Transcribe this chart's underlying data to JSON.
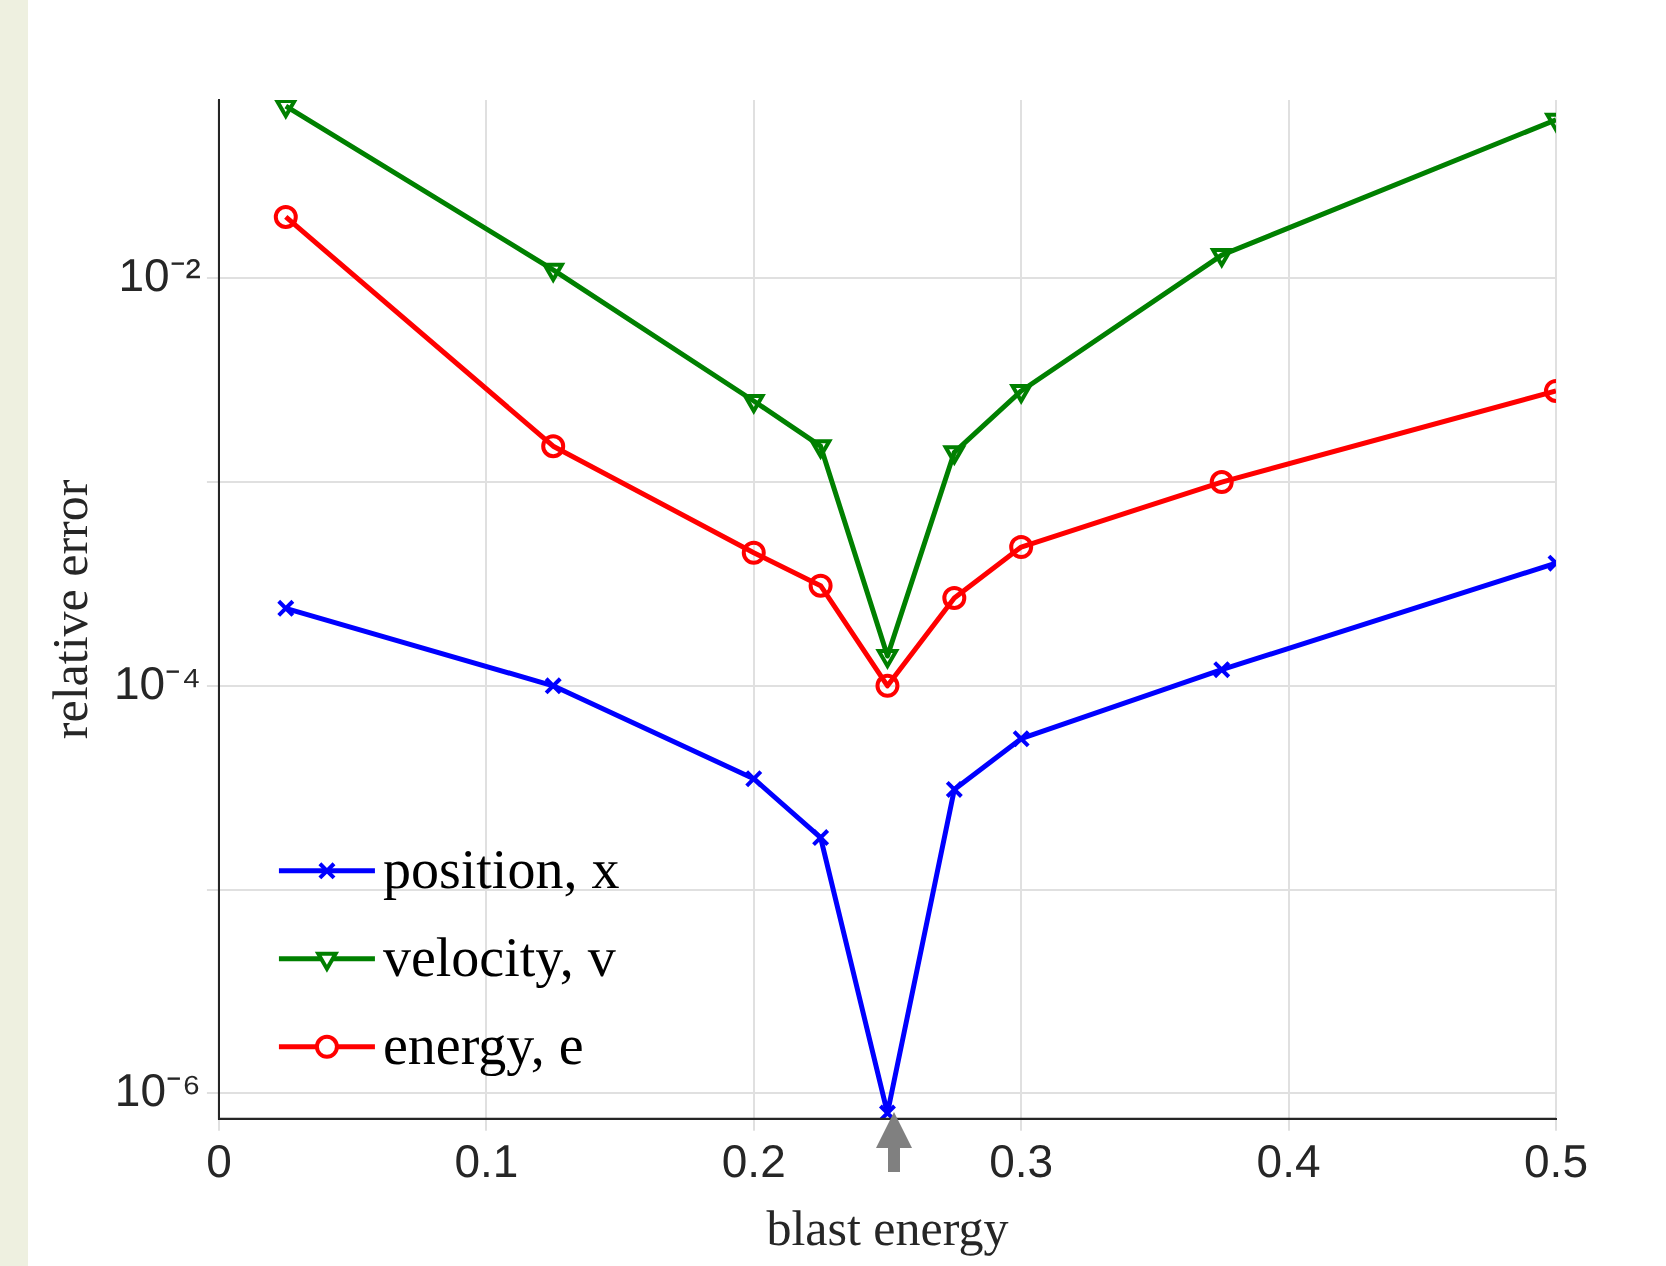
{
  "chart_data": {
    "type": "line",
    "xlabel": "blast energy",
    "ylabel": "relative error",
    "x": [
      0.025,
      0.125,
      0.2,
      0.225,
      0.25,
      0.275,
      0.3,
      0.375,
      0.5
    ],
    "series": [
      {
        "name": "position, x",
        "color": "#0000ff",
        "marker": "cross",
        "values": [
          0.00024,
          0.0001,
          3.5e-05,
          1.8e-05,
          8e-07,
          3.1e-05,
          5.5e-05,
          0.00012,
          0.0004
        ]
      },
      {
        "name": "velocity, v",
        "color": "#008000",
        "marker": "triangle",
        "values": [
          0.07,
          0.011,
          0.0025,
          0.0015,
          0.00014,
          0.0014,
          0.0028,
          0.013,
          0.06
        ]
      },
      {
        "name": "energy, e",
        "color": "#ff0000",
        "marker": "circle",
        "values": [
          0.02,
          0.0015,
          0.00045,
          0.00031,
          0.0001,
          0.00027,
          0.00048,
          0.001,
          0.0028
        ]
      }
    ],
    "xlim": [
      0,
      0.5
    ],
    "xticks": [
      0,
      0.1,
      0.2,
      0.3,
      0.4,
      0.5
    ],
    "log": "y",
    "ylim": [
      7.5e-07,
      0.075
    ],
    "yticks": [
      {
        "value": 1e-06,
        "label": "10⁻⁶"
      },
      {
        "value": 1e-05,
        "label": null
      },
      {
        "value": 0.0001,
        "label": "10⁻⁴"
      },
      {
        "value": 0.001,
        "label": null
      },
      {
        "value": 0.01,
        "label": "10⁻²"
      }
    ],
    "grid": true,
    "legend": "bottom left",
    "line_style": "solid"
  }
}
